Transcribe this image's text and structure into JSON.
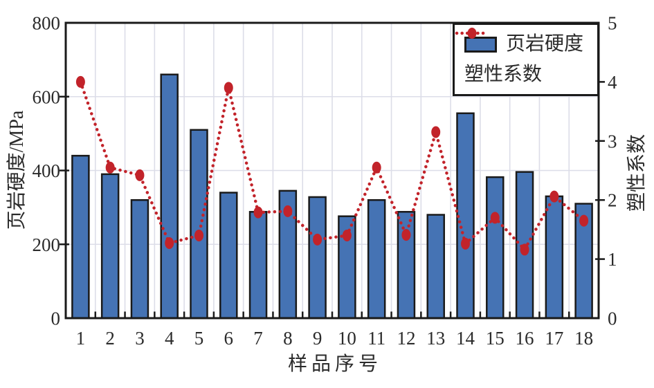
{
  "colors": {
    "bar_fill": "#4573b4",
    "line": "#c2232a",
    "frame": "#1a1a1a",
    "grid": "#dcdde8",
    "text": "#2b2b2b",
    "legend_bg": "#ffffff"
  },
  "chart_data": {
    "type": "bar+line",
    "title": "",
    "categories": [
      "1",
      "2",
      "3",
      "4",
      "5",
      "6",
      "7",
      "8",
      "9",
      "10",
      "11",
      "12",
      "13",
      "14",
      "15",
      "16",
      "17",
      "18"
    ],
    "series": [
      {
        "name": "页岩硬度",
        "type": "bar",
        "yaxis": "left",
        "values": [
          440,
          390,
          320,
          660,
          510,
          340,
          288,
          345,
          328,
          276,
          320,
          288,
          280,
          555,
          382,
          396,
          330,
          310
        ]
      },
      {
        "name": "塑性系数",
        "type": "line",
        "yaxis": "right",
        "values": [
          4.0,
          2.55,
          2.42,
          1.27,
          1.4,
          3.9,
          1.79,
          1.81,
          1.33,
          1.4,
          2.55,
          1.41,
          3.15,
          1.26,
          1.7,
          1.16,
          2.06,
          1.65
        ]
      }
    ],
    "xlabel": "样品序号",
    "ylabel_left": "页岩硬度/MPa",
    "ylabel_right": "塑性系数",
    "left_axis": {
      "min": 0,
      "max": 800,
      "ticks": [
        0,
        200,
        400,
        600,
        800
      ]
    },
    "right_axis": {
      "min": 0,
      "max": 5,
      "ticks": [
        0,
        1,
        2,
        3,
        4,
        5
      ]
    },
    "grid": {
      "horizontal_at_left_values": [
        200,
        400,
        600
      ],
      "vertical_between_categories": true
    },
    "legend_position": "top-right"
  },
  "legend": {
    "items": [
      {
        "label": "页岩硬度",
        "marker": "bar-swatch"
      },
      {
        "label": "塑性系数",
        "marker": "dotted-line-dot"
      }
    ]
  }
}
